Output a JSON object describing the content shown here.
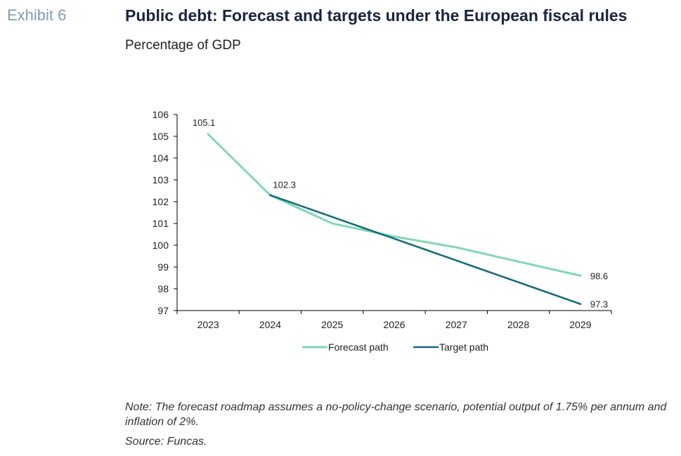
{
  "header": {
    "exhibit": "Exhibit 6",
    "title": "Public debt: Forecast and targets under the European fiscal rules",
    "subtitle": "Percentage of GDP"
  },
  "chart_data": {
    "type": "line",
    "x": [
      "2023",
      "2024",
      "2025",
      "2026",
      "2027",
      "2028",
      "2029"
    ],
    "ylim": [
      97,
      106
    ],
    "yticks": [
      97,
      98,
      99,
      100,
      101,
      102,
      103,
      104,
      105,
      106
    ],
    "grid": false,
    "legend_position": "bottom",
    "series": [
      {
        "name": "Forecast path",
        "color": "#7fd8b6",
        "values": [
          105.1,
          102.3,
          101.0,
          100.4,
          99.9,
          99.25,
          98.6
        ]
      },
      {
        "name": "Target path",
        "color": "#136b7c",
        "values": [
          null,
          102.3,
          101.3,
          100.3,
          99.3,
          98.3,
          97.3
        ]
      }
    ],
    "data_labels": [
      {
        "series": 0,
        "index": 0,
        "text": "105.1",
        "anchor": "above"
      },
      {
        "series": 0,
        "index": 1,
        "text": "102.3",
        "anchor": "above-right"
      },
      {
        "series": 0,
        "index": 6,
        "text": "98.6",
        "anchor": "right"
      },
      {
        "series": 1,
        "index": 6,
        "text": "97.3",
        "anchor": "right"
      }
    ]
  },
  "footer": {
    "note": "Note: The forecast roadmap assumes a no-policy-change scenario, potential output of 1.75% per annum and inflation of 2%.",
    "source": "Source: Funcas."
  }
}
